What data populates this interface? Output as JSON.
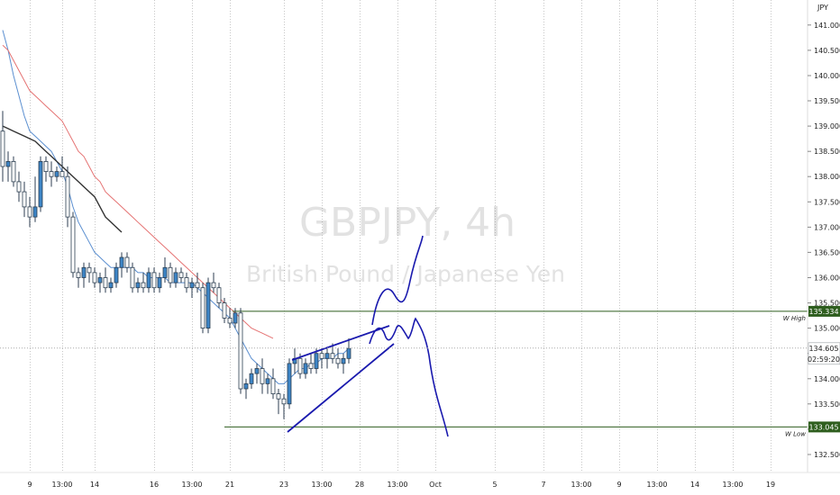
{
  "chart_data": {
    "type": "candlestick",
    "symbol": "GBPJPY",
    "interval": "4h",
    "watermark_line1": "GBPJPY, 4h",
    "watermark_line2": "British Pound / Japanese Yen",
    "currency": "JPY",
    "ylim": [
      132.25,
      141.3
    ],
    "y_ticks": [
      "132.500",
      "133.000",
      "133.500",
      "134.000",
      "134.500",
      "135.000",
      "135.500",
      "136.000",
      "136.500",
      "137.000",
      "137.500",
      "138.000",
      "138.500",
      "139.000",
      "139.500",
      "140.000",
      "140.500",
      "141.000"
    ],
    "x_ticks": [
      {
        "label": "9",
        "i": 5
      },
      {
        "label": "13:00",
        "i": 11
      },
      {
        "label": "14",
        "i": 17
      },
      {
        "label": "16",
        "i": 28
      },
      {
        "label": "13:00",
        "i": 35
      },
      {
        "label": "21",
        "i": 42
      },
      {
        "label": "23",
        "i": 52
      },
      {
        "label": "13:00",
        "i": 59
      },
      {
        "label": "28",
        "i": 66
      },
      {
        "label": "13:00",
        "i": 73
      },
      {
        "label": "Oct",
        "i": 80
      },
      {
        "label": "5",
        "i": 91
      },
      {
        "label": "7",
        "i": 100
      },
      {
        "label": "9",
        "i": 114
      },
      {
        "label": "13:00",
        "i": 107
      },
      {
        "label": "13:00",
        "i": 121
      },
      {
        "label": "14",
        "i": 128
      },
      {
        "label": "13:00",
        "i": 135
      },
      {
        "label": "19",
        "i": 142
      }
    ],
    "x_tick_fix": {
      "9_second_index": 114
    },
    "candles": [
      [
        138.9,
        139.3,
        137.9,
        138.2
      ],
      [
        138.2,
        138.5,
        137.9,
        138.3
      ],
      [
        138.3,
        138.4,
        137.8,
        137.9
      ],
      [
        137.9,
        138.1,
        137.5,
        137.7
      ],
      [
        137.7,
        137.9,
        137.2,
        137.4
      ],
      [
        137.4,
        137.6,
        137.0,
        137.2
      ],
      [
        137.2,
        138.0,
        137.1,
        137.4
      ],
      [
        137.4,
        138.4,
        137.3,
        138.3
      ],
      [
        138.3,
        138.4,
        137.9,
        138.1
      ],
      [
        138.1,
        138.3,
        137.8,
        138.0
      ],
      [
        138.0,
        138.2,
        137.9,
        138.1
      ],
      [
        138.1,
        138.4,
        138.0,
        138.0
      ],
      [
        138.0,
        138.2,
        137.0,
        137.2
      ],
      [
        137.2,
        137.3,
        136.0,
        136.1
      ],
      [
        136.1,
        136.2,
        135.8,
        136.0
      ],
      [
        136.0,
        136.3,
        135.8,
        136.2
      ],
      [
        136.2,
        136.3,
        135.9,
        136.1
      ],
      [
        136.1,
        136.2,
        135.8,
        135.9
      ],
      [
        135.9,
        136.1,
        135.7,
        136.0
      ],
      [
        136.0,
        136.2,
        135.7,
        135.8
      ],
      [
        135.8,
        136.0,
        135.7,
        135.9
      ],
      [
        135.9,
        136.3,
        135.8,
        136.2
      ],
      [
        136.2,
        136.5,
        136.0,
        136.4
      ],
      [
        136.4,
        136.5,
        136.1,
        136.2
      ],
      [
        136.2,
        136.3,
        135.7,
        135.8
      ],
      [
        135.8,
        136.0,
        135.7,
        135.9
      ],
      [
        135.9,
        136.1,
        135.7,
        135.8
      ],
      [
        135.8,
        136.2,
        135.7,
        136.1
      ],
      [
        136.1,
        136.2,
        135.7,
        135.8
      ],
      [
        135.8,
        136.1,
        135.7,
        136.0
      ],
      [
        136.0,
        136.4,
        135.9,
        136.2
      ],
      [
        136.2,
        136.3,
        135.8,
        135.9
      ],
      [
        135.9,
        136.2,
        135.8,
        136.1
      ],
      [
        136.1,
        136.2,
        135.9,
        136.0
      ],
      [
        136.0,
        136.1,
        135.7,
        135.8
      ],
      [
        135.8,
        136.0,
        135.6,
        135.9
      ],
      [
        135.9,
        136.1,
        135.7,
        135.8
      ],
      [
        135.8,
        135.9,
        134.9,
        135.0
      ],
      [
        135.0,
        136.0,
        134.9,
        135.9
      ],
      [
        135.9,
        136.1,
        135.7,
        135.8
      ],
      [
        135.8,
        135.9,
        135.4,
        135.5
      ],
      [
        135.5,
        135.6,
        135.1,
        135.2
      ],
      [
        135.2,
        135.4,
        135.0,
        135.1
      ],
      [
        135.1,
        135.4,
        135.0,
        135.3
      ],
      [
        135.3,
        135.4,
        133.7,
        133.8
      ],
      [
        133.8,
        134.0,
        133.6,
        133.9
      ],
      [
        133.9,
        134.2,
        133.8,
        134.1
      ],
      [
        134.1,
        134.3,
        133.9,
        134.2
      ],
      [
        134.2,
        134.4,
        133.7,
        133.9
      ],
      [
        133.9,
        134.1,
        133.7,
        134.0
      ],
      [
        134.0,
        134.2,
        133.6,
        133.7
      ],
      [
        133.7,
        133.8,
        133.3,
        133.6
      ],
      [
        133.6,
        133.7,
        133.2,
        133.5
      ],
      [
        133.5,
        134.4,
        133.4,
        134.3
      ],
      [
        134.3,
        134.6,
        134.1,
        134.4
      ],
      [
        134.4,
        134.5,
        134.0,
        134.1
      ],
      [
        134.1,
        134.4,
        134.0,
        134.3
      ],
      [
        134.3,
        134.5,
        134.1,
        134.2
      ],
      [
        134.2,
        134.6,
        134.1,
        134.5
      ],
      [
        134.5,
        134.6,
        134.2,
        134.4
      ],
      [
        134.4,
        134.6,
        134.2,
        134.5
      ],
      [
        134.5,
        134.7,
        134.3,
        134.4
      ],
      [
        134.4,
        134.6,
        134.2,
        134.3
      ],
      [
        134.3,
        134.5,
        134.1,
        134.4
      ],
      [
        134.4,
        134.8,
        134.3,
        134.6
      ]
    ],
    "series": [
      {
        "name": "",
        "color": "#5b8fd0",
        "values": [
          140.9,
          140.5,
          140.0,
          139.6,
          139.2,
          138.9,
          138.8,
          138.7,
          138.6,
          138.5,
          138.3,
          138.1,
          137.8,
          137.4,
          137.1,
          136.9,
          136.7,
          136.5,
          136.4,
          136.3,
          136.2,
          136.2,
          136.2,
          136.2,
          136.2,
          136.1,
          136.1,
          136.0,
          136.0,
          136.0,
          136.0,
          135.9,
          135.9,
          135.9,
          135.9,
          135.9,
          135.8,
          135.7,
          135.6,
          135.5,
          135.4,
          135.3,
          135.2,
          135.0,
          134.8,
          134.6,
          134.4,
          134.3,
          134.2,
          134.1,
          134.0,
          133.9,
          133.9,
          134.0,
          134.1,
          134.2,
          134.2,
          134.3,
          134.3,
          134.4,
          134.4,
          134.4,
          134.5,
          134.5,
          134.6
        ]
      },
      {
        "name": "",
        "color": "#e57373",
        "values": [
          140.6,
          140.5,
          140.3,
          140.1,
          139.9,
          139.7,
          139.6,
          139.5,
          139.4,
          139.3,
          139.2,
          139.1,
          138.9,
          138.7,
          138.5,
          138.4,
          138.2,
          138.0,
          137.9,
          137.7,
          137.6,
          137.5,
          137.4,
          137.3,
          137.2,
          137.1,
          137.0,
          136.9,
          136.8,
          136.7,
          136.6,
          136.5,
          136.4,
          136.3,
          136.2,
          136.1,
          136.0,
          135.9,
          135.8,
          135.7,
          135.6,
          135.5,
          135.4,
          135.3,
          135.2,
          135.1,
          135.0,
          134.95,
          134.9,
          134.85,
          134.8
        ]
      },
      {
        "name": "",
        "color": "#333333",
        "values": [
          139.0,
          138.95,
          138.9,
          138.85,
          138.8,
          138.75,
          138.7,
          138.6,
          138.5,
          138.4,
          138.3,
          138.2,
          138.1,
          138.0,
          137.9,
          137.8,
          137.7,
          137.6,
          137.4,
          137.2,
          137.1,
          137.0,
          136.9
        ]
      }
    ],
    "levels": [
      {
        "label": "W High",
        "value": "135.334",
        "color": "#2e5e1e"
      },
      {
        "label": "W Low",
        "value": "133.045",
        "color": "#2e5e1e"
      }
    ],
    "current": {
      "price": "134.605",
      "countdown": "02:59:20",
      "color": "#ffffff",
      "text_color": "#222222"
    },
    "colors": {
      "bull_fill": "#3d85c6",
      "candle_outline": "#2c3e50",
      "bear_fill": "#ffffff",
      "drawing": "#1a1aae",
      "vertical_grid": "#c8c8c8",
      "horizontal_level": "#2e5e1e"
    }
  }
}
